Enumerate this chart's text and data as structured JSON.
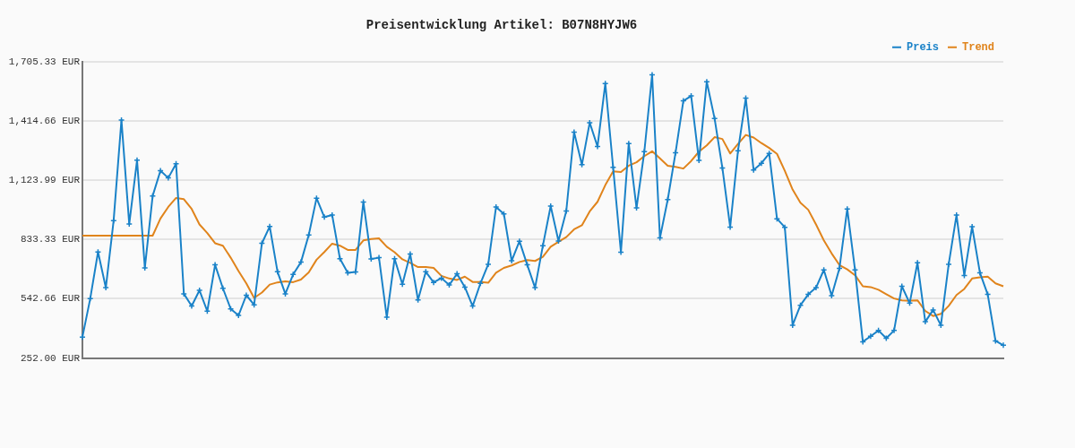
{
  "chart_data": {
    "type": "line",
    "title": "Preisentwicklung Artikel: B07N8HYJW6",
    "categories": [
      null,
      null,
      null,
      null,
      null,
      null,
      null,
      null,
      null,
      null,
      null,
      null,
      null,
      null,
      null,
      null,
      null,
      null,
      null,
      null,
      null,
      null,
      null,
      null,
      null,
      null,
      null,
      null,
      null,
      null,
      null,
      null,
      null,
      null,
      null,
      null,
      null,
      null,
      null,
      null,
      null,
      null,
      null,
      null,
      null,
      null,
      null,
      null,
      null,
      null,
      null,
      null,
      null,
      null,
      null,
      null,
      null,
      null,
      null,
      null,
      null,
      null,
      null,
      null,
      null,
      null,
      null,
      null,
      null,
      null,
      null,
      null,
      null,
      null,
      null,
      null,
      null,
      null,
      null,
      null,
      null,
      null,
      null,
      null,
      null,
      null,
      null,
      null,
      null,
      null,
      null,
      null,
      null,
      null,
      null,
      null,
      null,
      null,
      null,
      null,
      null,
      null,
      null,
      null,
      null,
      null,
      null,
      null,
      null,
      null,
      null,
      null,
      null,
      null,
      null,
      null,
      null,
      null,
      null
    ],
    "series": [
      {
        "name": "Preis",
        "color": "#1a82c8",
        "marker": "cross",
        "values": [
          355,
          543,
          772,
          597,
          926,
          1419,
          909,
          1222,
          694,
          1047,
          1171,
          1135,
          1205,
          567,
          507,
          584,
          482,
          709,
          594,
          493,
          461,
          560,
          513,
          815,
          897,
          675,
          567,
          662,
          722,
          855,
          1036,
          943,
          953,
          739,
          670,
          674,
          1017,
          738,
          744,
          452,
          739,
          614,
          762,
          537,
          675,
          623,
          644,
          610,
          665,
          600,
          507,
          618,
          712,
          993,
          959,
          729,
          825,
          709,
          597,
          803,
          997,
          826,
          973,
          1360,
          1200,
          1406,
          1289,
          1598,
          1187,
          771,
          1304,
          988,
          1264,
          1641,
          841,
          1029,
          1259,
          1513,
          1537,
          1221,
          1607,
          1427,
          1184,
          894,
          1268,
          1526,
          1174,
          1207,
          1255,
          935,
          893,
          413,
          511,
          564,
          597,
          684,
          558,
          692,
          983,
          684,
          332,
          359,
          387,
          349,
          387,
          604,
          521,
          719,
          430,
          488,
          413,
          712,
          953,
          657,
          896,
          670,
          564,
          336,
          315
        ]
      },
      {
        "name": "Trend",
        "color": "#e0841c",
        "marker": "none",
        "values": [
          852,
          852,
          852,
          852,
          852,
          852,
          852,
          852,
          852,
          852,
          936,
          993,
          1037,
          1031,
          983,
          907,
          865,
          815,
          803,
          744,
          679,
          618,
          547,
          573,
          612,
          623,
          628,
          624,
          637,
          672,
          734,
          772,
          813,
          803,
          782,
          782,
          829,
          836,
          839,
          798,
          771,
          736,
          719,
          698,
          698,
          694,
          655,
          642,
          635,
          651,
          625,
          625,
          621,
          670,
          694,
          706,
          723,
          732,
          728,
          748,
          798,
          822,
          845,
          883,
          903,
          971,
          1018,
          1100,
          1167,
          1164,
          1195,
          1212,
          1242,
          1266,
          1231,
          1195,
          1189,
          1181,
          1218,
          1264,
          1295,
          1335,
          1326,
          1255,
          1302,
          1346,
          1333,
          1306,
          1282,
          1253,
          1170,
          1078,
          1014,
          979,
          907,
          829,
          765,
          708,
          687,
          658,
          604,
          600,
          587,
          565,
          544,
          535,
          533,
          535,
          483,
          458,
          469,
          508,
          561,
          591,
          642,
          648,
          651,
          618,
          604
        ]
      }
    ],
    "ylim": [
      252,
      1705.33
    ],
    "yticks": [
      {
        "value": 252,
        "label": "252.00 EUR"
      },
      {
        "value": 542.66,
        "label": "542.66 EUR"
      },
      {
        "value": 833.33,
        "label": "833.33 EUR"
      },
      {
        "value": 1123.99,
        "label": "1,123.99 EUR"
      },
      {
        "value": 1414.66,
        "label": "1,414.66 EUR"
      },
      {
        "value": 1705.33,
        "label": "1,705.33 EUR"
      }
    ],
    "grid": "y",
    "legend": "top right",
    "line_style": "solid"
  }
}
